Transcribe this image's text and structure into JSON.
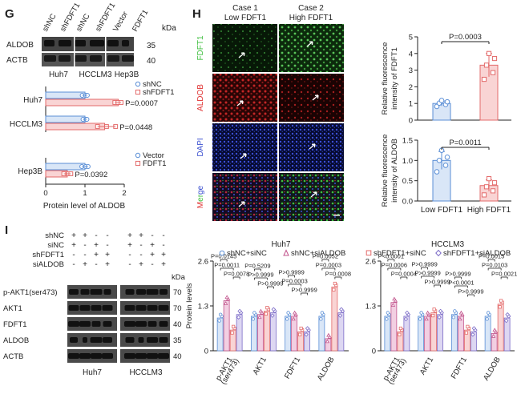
{
  "colors": {
    "blue": "#5b8fd6",
    "blue_fill": "#d9e6f7",
    "red": "#e36a6a",
    "red_fill": "#f9d4d4",
    "pink": "#c2548c",
    "pink_fill": "#f2cfe2",
    "purple": "#7b6bc7",
    "purple_fill": "#ddd7f2",
    "text": "#222222"
  },
  "panel_letters": {
    "g": "G",
    "h": "H",
    "i": "I"
  },
  "panel_g": {
    "blot": {
      "lanes_group1": [
        "shNC",
        "shFDFT1",
        "shNC",
        "shFDFT1"
      ],
      "lanes_group2": [
        "Vector",
        "FDFT1"
      ],
      "rows": [
        "ALDOB",
        "ACTB"
      ],
      "kda_label": "kDa",
      "kda": [
        "35",
        "40"
      ],
      "cell_lines": [
        "Huh7",
        "HCCLM3",
        "Hep3B"
      ]
    }
  },
  "panel_h": {
    "columns": [
      "Case 1",
      "Case 2"
    ],
    "column_sub": [
      "Low FDFT1",
      "High FDFT1"
    ],
    "rows": [
      "FDFT1",
      "ALDOB",
      "DAPI",
      "Merge"
    ],
    "row_colors": [
      "#3fbf3f",
      "#e03030",
      "#3a4fd0",
      ""
    ],
    "merge_letters": [
      {
        "t": "M",
        "c": "#e03030"
      },
      {
        "t": "er",
        "c": "#3fbf3f"
      },
      {
        "t": "ge",
        "c": "#3a4fd0"
      }
    ]
  },
  "panel_i": {
    "treatments": [
      {
        "label": "shNC",
        "marks": [
          "+",
          "+",
          "-",
          "-",
          "+",
          "+",
          "-",
          "-"
        ]
      },
      {
        "label": "siNC",
        "marks": [
          "+",
          "-",
          "+",
          "-",
          "+",
          "-",
          "+",
          "-"
        ]
      },
      {
        "label": "shFDFT1",
        "marks": [
          "-",
          "-",
          "+",
          "+",
          "-",
          "-",
          "+",
          "+"
        ]
      },
      {
        "label": "siALDOB",
        "marks": [
          "-",
          "+",
          "-",
          "+",
          "-",
          "+",
          "-",
          "+"
        ]
      }
    ],
    "kda_label": "kDa",
    "blot_rows": [
      {
        "label": "p-AKT1(ser473)",
        "kda": "70"
      },
      {
        "label": "AKT1",
        "kda": "70"
      },
      {
        "label": "FDFT1",
        "kda": "40"
      },
      {
        "label": "ALDOB",
        "kda": "35"
      },
      {
        "label": "ACTB",
        "kda": "40"
      }
    ],
    "cell_lines": [
      "Huh7",
      "HCCLM3"
    ]
  },
  "chart_data": [
    {
      "id": "g_huh7_hcclm3",
      "type": "bar",
      "orientation": "horizontal",
      "categories": [
        "Huh7",
        "HCCLM3"
      ],
      "series": [
        {
          "name": "shNC",
          "values": [
            1.0,
            1.0
          ],
          "points": [
            [
              0.93,
              1.02,
              1.06
            ],
            [
              0.95,
              1.03,
              1.05
            ]
          ]
        },
        {
          "name": "shFDFT1",
          "values": [
            1.85,
            1.5
          ],
          "points": [
            [
              1.76,
              1.84,
              1.92
            ],
            [
              1.32,
              1.55,
              1.78
            ]
          ]
        }
      ],
      "p_values": [
        "P=0.0007",
        "P=0.0448"
      ],
      "xlim": [
        0,
        2
      ]
    },
    {
      "id": "g_hep3b",
      "type": "bar",
      "orientation": "horizontal",
      "categories": [
        "Hep3B"
      ],
      "series": [
        {
          "name": "Vector",
          "values": [
            1.0
          ],
          "points": [
            [
              0.92,
              1.02,
              1.08
            ]
          ]
        },
        {
          "name": "FDFT1",
          "values": [
            0.55
          ],
          "points": [
            [
              0.46,
              0.58,
              0.64
            ]
          ]
        }
      ],
      "p_values": [
        "P=0.0392"
      ],
      "xlim": [
        0,
        2
      ],
      "xticks": [
        0,
        1,
        2
      ],
      "xlabel": "Protein level of ALDOB"
    },
    {
      "id": "h_fdft1",
      "type": "bar",
      "categories": [
        "Low FDFT1",
        "High FDFT1"
      ],
      "values": [
        1.0,
        3.3
      ],
      "points": [
        [
          0.82,
          0.94,
          1.02,
          1.1,
          1.18
        ],
        [
          2.45,
          2.85,
          3.3,
          3.7,
          4.0
        ]
      ],
      "errors": [
        0.15,
        0.7
      ],
      "p_value": "P=0.0003",
      "ylabel": "Relative fluorescence intensity of FDFT1",
      "ylim": [
        0,
        5
      ],
      "yticks": [
        0,
        1,
        2,
        3,
        4,
        5
      ]
    },
    {
      "id": "h_aldob",
      "type": "bar",
      "categories": [
        "Low FDFT1",
        "High FDFT1"
      ],
      "values": [
        1.0,
        0.38
      ],
      "points": [
        [
          0.72,
          0.88,
          1.0,
          1.08,
          1.25
        ],
        [
          0.15,
          0.25,
          0.35,
          0.45,
          0.55
        ]
      ],
      "errors": [
        0.22,
        0.14
      ],
      "p_value": "P=0.0011",
      "ylabel": "Relative fluorescence intensity of ALDOB",
      "ylim": [
        0,
        1.5
      ],
      "yticks": [
        0.0,
        0.5,
        1.0,
        1.5
      ]
    },
    {
      "id": "i_huh7",
      "type": "bar",
      "title": "Huh7",
      "legend": [
        "shNC+siNC",
        "shNC+siALDOB"
      ],
      "series_names": [
        "shNC+siNC",
        "shNC+siALDOB",
        "shFDFT1+siNC",
        "shFDFT1+siALDOB"
      ],
      "categories": [
        "p-AKT1 (ser473)",
        "AKT1",
        "FDFT1",
        "ALDOB"
      ],
      "values": [
        [
          0.95,
          1.45,
          0.6,
          1.05
        ],
        [
          1.0,
          1.05,
          1.15,
          1.1
        ],
        [
          1.0,
          1.0,
          0.55,
          0.55
        ],
        [
          1.0,
          0.35,
          1.85,
          1.1
        ]
      ],
      "comparisons": [
        {
          "bar": 0,
          "from": 0,
          "to": 1,
          "label": "P=0.0145"
        },
        {
          "bar": 0,
          "from": 0,
          "to": 2,
          "label": "P=0.0011"
        },
        {
          "bar": 0,
          "from": 2,
          "to": 3,
          "label": "P=0.0078"
        },
        {
          "bar": 1,
          "from": 0,
          "to": 1,
          "label": "P=0.5209"
        },
        {
          "bar": 1,
          "from": 0,
          "to": 2,
          "label": "P>0.9999"
        },
        {
          "bar": 1,
          "from": 2,
          "to": 3,
          "label": "P>0.9999"
        },
        {
          "bar": 2,
          "from": 0,
          "to": 1,
          "label": "P>0.9999"
        },
        {
          "bar": 2,
          "from": 0,
          "to": 2,
          "label": "P=0.0003"
        },
        {
          "bar": 2,
          "from": 2,
          "to": 3,
          "label": "P>0.9999"
        },
        {
          "bar": 3,
          "from": 0,
          "to": 1,
          "label": "P=0.0052"
        },
        {
          "bar": 3,
          "from": 0,
          "to": 2,
          "label": "P=0.0003"
        },
        {
          "bar": 3,
          "from": 2,
          "to": 3,
          "label": "P=0.0008"
        }
      ],
      "ylabel": "Protein levels",
      "ylim": [
        0,
        2.6
      ],
      "yticks": [
        0,
        1.3,
        2.6
      ]
    },
    {
      "id": "i_hcclm3",
      "type": "bar",
      "title": "HCCLM3",
      "legend": [
        "shFDFT1+siNC",
        "shFDFT1+siALDOB"
      ],
      "series_names": [
        "shNC+siNC",
        "shNC+siALDOB",
        "shFDFT1+siNC",
        "shFDFT1+siALDOB"
      ],
      "categories": [
        "p-AKT1 (ser473)",
        "AKT1",
        "FDFT1",
        "ALDOB"
      ],
      "values": [
        [
          1.0,
          1.4,
          0.55,
          1.0
        ],
        [
          1.0,
          1.0,
          1.1,
          1.05
        ],
        [
          1.05,
          1.0,
          0.6,
          0.55
        ],
        [
          1.0,
          0.5,
          1.35,
          0.95
        ]
      ],
      "comparisons": [
        {
          "bar": 0,
          "from": 0,
          "to": 1,
          "label": "P<0.0001"
        },
        {
          "bar": 0,
          "from": 0,
          "to": 2,
          "label": "P=0.0006"
        },
        {
          "bar": 0,
          "from": 2,
          "to": 3,
          "label": "P=0.0004"
        },
        {
          "bar": 1,
          "from": 0,
          "to": 1,
          "label": "P>0.9999"
        },
        {
          "bar": 1,
          "from": 0,
          "to": 2,
          "label": "P>0.9999"
        },
        {
          "bar": 1,
          "from": 2,
          "to": 3,
          "label": "P>0.9999"
        },
        {
          "bar": 2,
          "from": 0,
          "to": 1,
          "label": "P>0.9999"
        },
        {
          "bar": 2,
          "from": 0,
          "to": 2,
          "label": "P<0.0001"
        },
        {
          "bar": 2,
          "from": 2,
          "to": 3,
          "label": "P>0.9999"
        },
        {
          "bar": 3,
          "from": 0,
          "to": 1,
          "label": "P=0.0015"
        },
        {
          "bar": 3,
          "from": 0,
          "to": 2,
          "label": "P=0.0103"
        },
        {
          "bar": 3,
          "from": 2,
          "to": 3,
          "label": "P=0.0021"
        }
      ],
      "ylim": [
        0,
        2.6
      ],
      "yticks": [
        0,
        1.3,
        2.6
      ]
    }
  ]
}
